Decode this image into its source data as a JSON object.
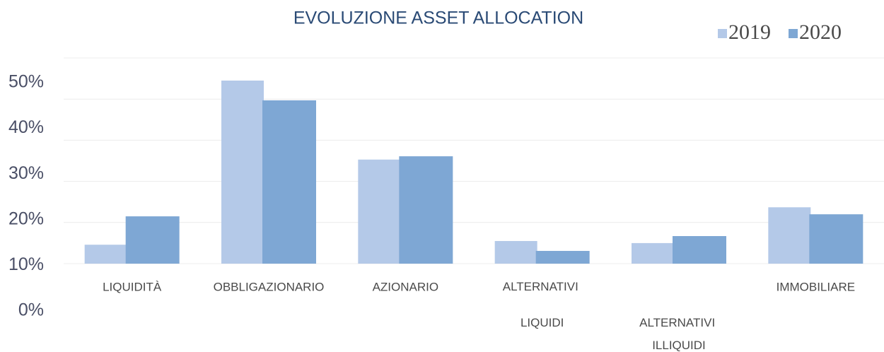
{
  "chart_data": {
    "type": "bar",
    "title": "EVOLUZIONE ASSET ALLOCATION",
    "categories": [
      "LIQUIDITÀ",
      "OBBLIGAZIONARIO",
      "AZIONARIO",
      "ALTERNATIVI LIQUIDI",
      "ALTERNATIVI ILLIQUIDI",
      "IMMOBILIARE"
    ],
    "series": [
      {
        "name": "2019",
        "color": "#b4c9e8",
        "values": [
          4.6,
          44.5,
          25.3,
          5.5,
          5.0,
          13.7
        ]
      },
      {
        "name": "2020",
        "color": "#7ea7d4",
        "values": [
          11.5,
          39.7,
          26.1,
          3.1,
          6.7,
          12.0
        ]
      }
    ],
    "ylim": [
      0,
      50
    ],
    "yticks": [
      {
        "value": 0,
        "label": "0%"
      },
      {
        "value": 10,
        "label": "10%"
      },
      {
        "value": 20,
        "label": "20%"
      },
      {
        "value": 30,
        "label": "30%"
      },
      {
        "value": 40,
        "label": "40%"
      },
      {
        "value": 50,
        "label": "50%"
      }
    ],
    "grid": true,
    "legend": "top-right"
  }
}
